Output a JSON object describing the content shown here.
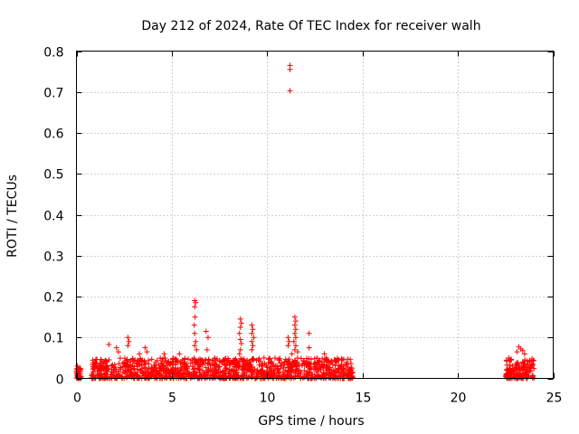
{
  "chart_data": {
    "type": "scatter",
    "title": "Day 212 of 2024, Rate Of TEC Index for receiver walh",
    "xlabel": "GPS time / hours",
    "ylabel": "ROTI / TECUs",
    "xlim": [
      0,
      25
    ],
    "ylim": [
      0,
      0.8
    ],
    "x_ticks": [
      "0",
      "5",
      "10",
      "15",
      "20",
      "25"
    ],
    "y_ticks": [
      "0",
      "0.1",
      "0.2",
      "0.3",
      "0.4",
      "0.5",
      "0.6",
      "0.7",
      "0.8"
    ],
    "grid": true,
    "marker": "plus",
    "color": "#ff0000",
    "segments": [
      {
        "x_start": 0.0,
        "x_end": 0.25,
        "base_max": 0.025
      },
      {
        "x_start": 0.8,
        "x_end": 14.5,
        "base_max": 0.05
      },
      {
        "x_start": 22.5,
        "x_end": 24.0,
        "base_max": 0.05
      }
    ],
    "points": [
      {
        "x": 11.2,
        "y": 0.765
      },
      {
        "x": 11.2,
        "y": 0.755
      },
      {
        "x": 11.2,
        "y": 0.703
      },
      {
        "x": 6.2,
        "y": 0.19
      },
      {
        "x": 6.25,
        "y": 0.185
      },
      {
        "x": 6.2,
        "y": 0.175
      },
      {
        "x": 6.22,
        "y": 0.15
      },
      {
        "x": 6.18,
        "y": 0.13
      },
      {
        "x": 6.2,
        "y": 0.11
      },
      {
        "x": 6.25,
        "y": 0.09
      },
      {
        "x": 6.2,
        "y": 0.08
      },
      {
        "x": 6.3,
        "y": 0.07
      },
      {
        "x": 8.6,
        "y": 0.145
      },
      {
        "x": 8.65,
        "y": 0.135
      },
      {
        "x": 8.6,
        "y": 0.125
      },
      {
        "x": 8.55,
        "y": 0.11
      },
      {
        "x": 8.6,
        "y": 0.095
      },
      {
        "x": 8.65,
        "y": 0.085
      },
      {
        "x": 8.6,
        "y": 0.07
      },
      {
        "x": 8.55,
        "y": 0.06
      },
      {
        "x": 9.2,
        "y": 0.13
      },
      {
        "x": 9.25,
        "y": 0.12
      },
      {
        "x": 9.2,
        "y": 0.11
      },
      {
        "x": 9.3,
        "y": 0.1
      },
      {
        "x": 9.2,
        "y": 0.09
      },
      {
        "x": 9.25,
        "y": 0.08
      },
      {
        "x": 9.2,
        "y": 0.07
      },
      {
        "x": 11.45,
        "y": 0.15
      },
      {
        "x": 11.5,
        "y": 0.14
      },
      {
        "x": 11.45,
        "y": 0.13
      },
      {
        "x": 11.5,
        "y": 0.12
      },
      {
        "x": 11.45,
        "y": 0.11
      },
      {
        "x": 11.5,
        "y": 0.1
      },
      {
        "x": 11.4,
        "y": 0.09
      },
      {
        "x": 11.5,
        "y": 0.08
      },
      {
        "x": 11.45,
        "y": 0.07
      },
      {
        "x": 11.6,
        "y": 0.065
      },
      {
        "x": 11.3,
        "y": 0.06
      },
      {
        "x": 11.1,
        "y": 0.1
      },
      {
        "x": 11.15,
        "y": 0.09
      },
      {
        "x": 11.1,
        "y": 0.08
      },
      {
        "x": 12.2,
        "y": 0.11
      },
      {
        "x": 12.2,
        "y": 0.075
      },
      {
        "x": 6.8,
        "y": 0.115
      },
      {
        "x": 6.9,
        "y": 0.1
      },
      {
        "x": 6.85,
        "y": 0.07
      },
      {
        "x": 2.7,
        "y": 0.1
      },
      {
        "x": 2.75,
        "y": 0.09
      },
      {
        "x": 2.7,
        "y": 0.08
      },
      {
        "x": 2.1,
        "y": 0.075
      },
      {
        "x": 2.2,
        "y": 0.065
      },
      {
        "x": 1.7,
        "y": 0.083
      },
      {
        "x": 3.6,
        "y": 0.075
      },
      {
        "x": 3.7,
        "y": 0.065
      },
      {
        "x": 3.3,
        "y": 0.06
      },
      {
        "x": 4.6,
        "y": 0.06
      },
      {
        "x": 5.4,
        "y": 0.06
      },
      {
        "x": 13.0,
        "y": 0.06
      },
      {
        "x": 13.1,
        "y": 0.05
      },
      {
        "x": 23.2,
        "y": 0.077
      },
      {
        "x": 23.3,
        "y": 0.072
      },
      {
        "x": 23.4,
        "y": 0.068
      },
      {
        "x": 23.1,
        "y": 0.065
      },
      {
        "x": 23.5,
        "y": 0.06
      },
      {
        "x": 22.8,
        "y": 0.045
      },
      {
        "x": 0.05,
        "y": 0.03
      },
      {
        "x": 0.1,
        "y": 0.025
      }
    ]
  }
}
